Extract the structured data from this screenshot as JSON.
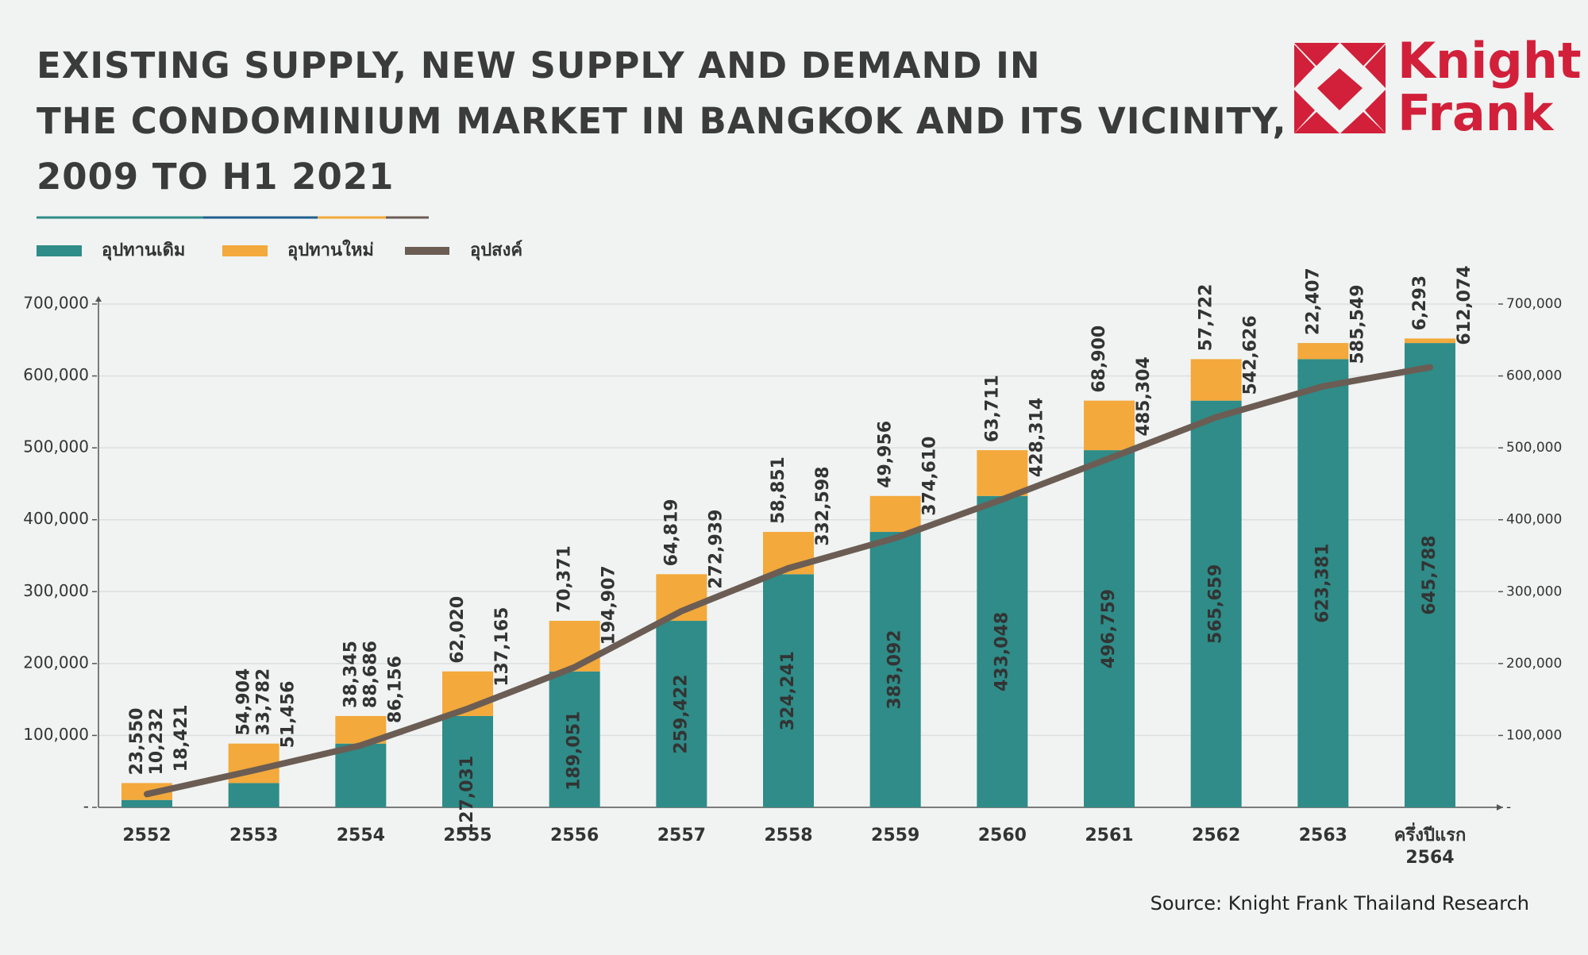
{
  "logo": {
    "line1": "Knight",
    "line2": "Frank"
  },
  "source": "Source: Knight Frank Thailand Research",
  "chart_data": {
    "type": "bar",
    "stacked": true,
    "title": "EXISTING SUPPLY, NEW SUPPLY AND DEMAND IN\nTHE CONDOMINIUM MARKET IN BANGKOK AND ITS VICINITY,\n2009 TO H1 2021",
    "categories": [
      "2552",
      "2553",
      "2554",
      "2555",
      "2556",
      "2557",
      "2558",
      "2559",
      "2560",
      "2561",
      "2562",
      "2563",
      "ครึ่งปีแรก\n2564"
    ],
    "series": [
      {
        "name": "อุปทานเดิม",
        "type": "bar",
        "color": "#2f8c88",
        "values": [
          10232,
          33782,
          88686,
          127031,
          189051,
          259422,
          324241,
          383092,
          433048,
          496759,
          565659,
          623381,
          645788
        ],
        "value_labels": [
          "10,232",
          "33,782",
          "88,686",
          "127,031",
          "189,051",
          "259,422",
          "324,241",
          "383,092",
          "433,048",
          "496,759",
          "565,659",
          "623,381",
          "645,788"
        ]
      },
      {
        "name": "อุปทานใหม่",
        "type": "bar",
        "color": "#f3a93b",
        "values": [
          23550,
          54904,
          38345,
          62020,
          70371,
          64819,
          58851,
          49956,
          63711,
          68900,
          57722,
          22407,
          6293
        ],
        "value_labels": [
          "23,550",
          "54,904",
          "38,345",
          "62,020",
          "70,371",
          "64,819",
          "58,851",
          "49,956",
          "63,711",
          "68,900",
          "57,722",
          "22,407",
          "6,293"
        ]
      },
      {
        "name": "อุปสงค์",
        "type": "line",
        "color": "#6b5d54",
        "values": [
          18421,
          51456,
          86156,
          137165,
          194907,
          272939,
          332598,
          374610,
          428314,
          485304,
          542626,
          585549,
          612074
        ],
        "value_labels": [
          "18,421",
          "51,456",
          "86,156",
          "137,165",
          "194,907",
          "272,939",
          "332,598",
          "374,610",
          "428,314",
          "485,304",
          "542,626",
          "585,549",
          "612,074"
        ]
      }
    ],
    "ylim": [
      0,
      700000
    ],
    "yticks": [
      {
        "value": 0,
        "label": "-"
      },
      {
        "value": 100000,
        "label": "100,000"
      },
      {
        "value": 200000,
        "label": "200,000"
      },
      {
        "value": 300000,
        "label": "300,000"
      },
      {
        "value": 400000,
        "label": "400,000"
      },
      {
        "value": 500000,
        "label": "500,000"
      },
      {
        "value": 600000,
        "label": "600,000"
      },
      {
        "value": 700000,
        "label": "700,000"
      }
    ],
    "y2lim": [
      0,
      700000
    ],
    "y2ticks": [
      {
        "value": 0,
        "label": "-"
      },
      {
        "value": 100000,
        "label": "100,000"
      },
      {
        "value": 200000,
        "label": "200,000"
      },
      {
        "value": 300000,
        "label": "300,000"
      },
      {
        "value": 400000,
        "label": "400,000"
      },
      {
        "value": 500000,
        "label": "500,000"
      },
      {
        "value": 600000,
        "label": "600,000"
      },
      {
        "value": 700000,
        "label": "700,000"
      }
    ],
    "grid": true,
    "legend": "top-left"
  }
}
